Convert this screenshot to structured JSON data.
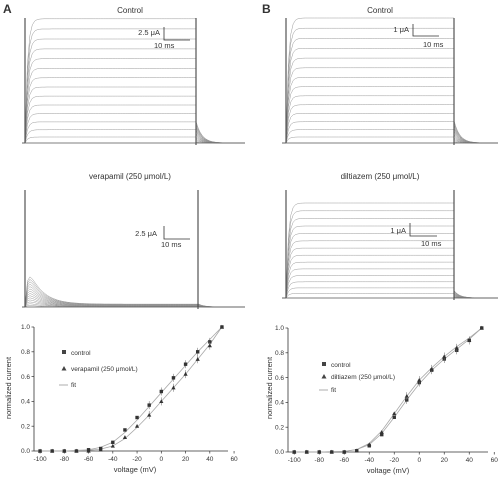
{
  "figure": {
    "panels": [
      {
        "letter": "A",
        "top_trace": {
          "title": "Control",
          "scale_current": "2.5 μA",
          "scale_time": "10 ms",
          "n_sweeps": 14,
          "peak_current_uA": 23,
          "tail_peak_uA": 4
        },
        "bottom_trace": {
          "title": "verapamil (250 μmol/L)",
          "scale_current": "2.5 μA",
          "scale_time": "10 ms",
          "n_sweeps": 14,
          "peak_current_uA": 9,
          "inactivation_tau_ms": 5
        }
      },
      {
        "letter": "B",
        "top_trace": {
          "title": "Control",
          "scale_current": "1 μA",
          "scale_time": "10 ms",
          "n_sweeps": 14,
          "peak_current_uA": 10,
          "tail_peak_uA": 1.8
        },
        "bottom_trace": {
          "title": "diltiazem (250 μmol/L)",
          "scale_current": "1 μA",
          "scale_time": "10 ms",
          "n_sweeps": 14,
          "peak_current_uA": 7.6,
          "inactivation_tau_ms": 0
        }
      }
    ]
  },
  "chart_data": [
    {
      "type": "scatter",
      "xlabel": "voltage (mV)",
      "ylabel": "normalized current",
      "xlim": [
        -105,
        55
      ],
      "ylim": [
        0,
        1.0
      ],
      "xticks": [
        -100,
        -80,
        -60,
        -40,
        -20,
        0,
        20,
        40,
        60
      ],
      "yticks": [
        "0.0",
        "0.2",
        "0.4",
        "0.6",
        "0.8",
        "1.0"
      ],
      "legend": [
        "control",
        "verapamil (250 μmol/L)",
        "fit"
      ],
      "legend_position": "upper-left",
      "series": [
        {
          "name": "control",
          "marker": "square",
          "x": [
            -100,
            -90,
            -80,
            -70,
            -60,
            -50,
            -40,
            -30,
            -20,
            -10,
            0,
            10,
            20,
            30,
            40,
            50
          ],
          "y": [
            0,
            0,
            0,
            0,
            0.01,
            0.02,
            0.07,
            0.17,
            0.27,
            0.37,
            0.48,
            0.59,
            0.7,
            0.8,
            0.88,
            1.0
          ]
        },
        {
          "name": "verapamil (250 μmol/L)",
          "marker": "triangle",
          "x": [
            -100,
            -90,
            -80,
            -70,
            -60,
            -50,
            -40,
            -30,
            -20,
            -10,
            0,
            10,
            20,
            30,
            40,
            50
          ],
          "y": [
            0,
            0,
            0,
            0,
            0,
            0.01,
            0.04,
            0.11,
            0.2,
            0.29,
            0.4,
            0.51,
            0.62,
            0.74,
            0.85,
            1.0
          ]
        }
      ],
      "fit_series": [
        {
          "x": [
            -100,
            -80,
            -60,
            -50,
            -40,
            -30,
            -20,
            -10,
            0,
            10,
            20,
            30,
            40,
            50
          ],
          "y": [
            0,
            0,
            0.01,
            0.03,
            0.07,
            0.15,
            0.25,
            0.36,
            0.47,
            0.58,
            0.69,
            0.8,
            0.9,
            1.0
          ]
        },
        {
          "x": [
            -100,
            -80,
            -60,
            -50,
            -40,
            -30,
            -20,
            -10,
            0,
            10,
            20,
            30,
            40,
            50
          ],
          "y": [
            0,
            0,
            0.005,
            0.015,
            0.04,
            0.1,
            0.19,
            0.29,
            0.4,
            0.51,
            0.62,
            0.74,
            0.86,
            1.0
          ]
        }
      ]
    },
    {
      "type": "scatter",
      "xlabel": "voltage (mV)",
      "ylabel": "normalized current",
      "xlim": [
        -105,
        55
      ],
      "ylim": [
        0,
        1.0
      ],
      "xticks": [
        -100,
        -80,
        -60,
        -40,
        -20,
        0,
        20,
        40,
        60
      ],
      "yticks": [
        "0.0",
        "0.2",
        "0.4",
        "0.6",
        "0.8",
        "1.0"
      ],
      "legend": [
        "control",
        "diltiazem (250 μmol/L)",
        "fit"
      ],
      "legend_position": "upper-left",
      "series": [
        {
          "name": "control",
          "marker": "square",
          "x": [
            -100,
            -90,
            -80,
            -70,
            -60,
            -50,
            -40,
            -30,
            -20,
            -10,
            0,
            10,
            20,
            30,
            40,
            50
          ],
          "y": [
            0,
            0,
            0,
            0,
            0,
            0.01,
            0.05,
            0.14,
            0.28,
            0.42,
            0.56,
            0.66,
            0.75,
            0.82,
            0.9,
            1.0
          ]
        },
        {
          "name": "diltiazem (250 μmol/L)",
          "marker": "triangle",
          "x": [
            -100,
            -90,
            -80,
            -70,
            -60,
            -50,
            -40,
            -30,
            -20,
            -10,
            0,
            10,
            20,
            30,
            40,
            50
          ],
          "y": [
            0,
            0,
            0,
            0,
            0,
            0.01,
            0.06,
            0.16,
            0.31,
            0.45,
            0.58,
            0.67,
            0.77,
            0.84,
            0.9,
            1.0
          ]
        }
      ],
      "fit_series": [
        {
          "x": [
            -100,
            -80,
            -60,
            -50,
            -40,
            -30,
            -20,
            -10,
            0,
            10,
            20,
            30,
            40,
            50
          ],
          "y": [
            0,
            0,
            0.005,
            0.02,
            0.06,
            0.15,
            0.28,
            0.42,
            0.55,
            0.66,
            0.75,
            0.83,
            0.91,
            1.0
          ]
        },
        {
          "x": [
            -100,
            -80,
            -60,
            -50,
            -40,
            -30,
            -20,
            -10,
            0,
            10,
            20,
            30,
            40,
            50
          ],
          "y": [
            0,
            0,
            0.005,
            0.02,
            0.07,
            0.17,
            0.31,
            0.45,
            0.58,
            0.68,
            0.77,
            0.85,
            0.92,
            1.0
          ]
        }
      ]
    }
  ]
}
